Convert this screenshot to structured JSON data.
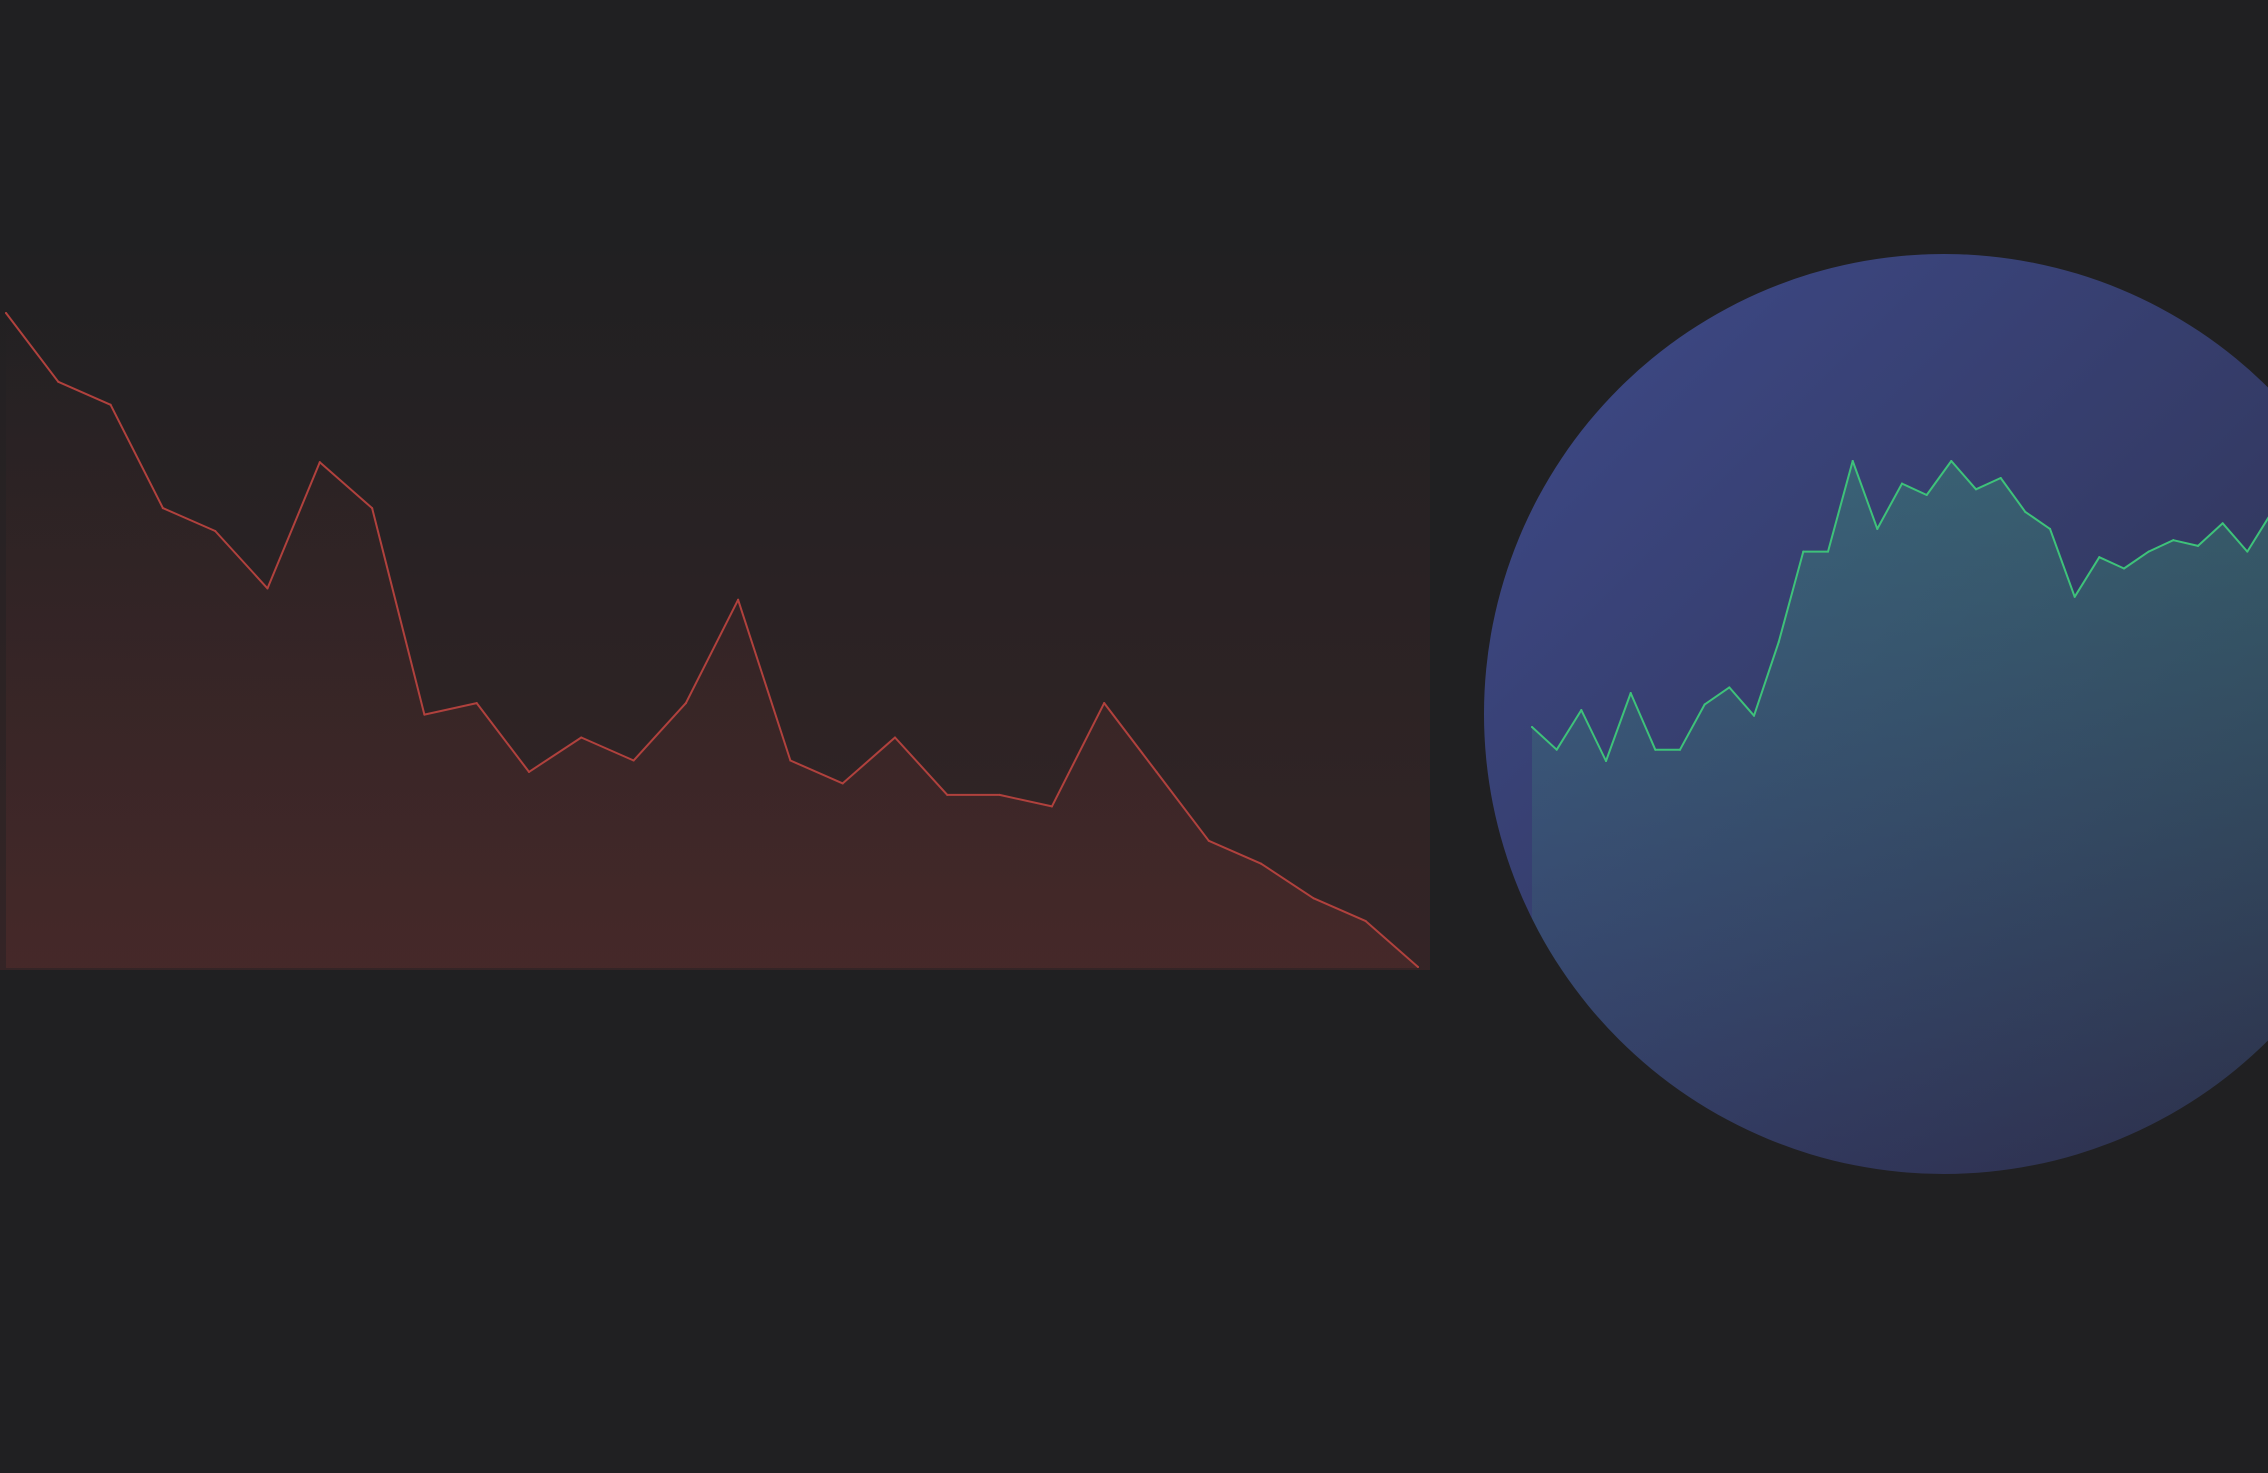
{
  "colors": {
    "background": "#202022",
    "down_line": "#b0413d",
    "up_line": "#3ec27a",
    "orb_light": "#3e4a8a",
    "orb_dark": "#2d2f4e"
  },
  "icons": {
    "orb": "gradient-circle-icon"
  },
  "chart_data": [
    {
      "type": "area",
      "trend": "down",
      "x": [
        0,
        1,
        2,
        3,
        4,
        5,
        6,
        7,
        8,
        9,
        10,
        11,
        12,
        13,
        14,
        15,
        16,
        17,
        18,
        19,
        20,
        21,
        22,
        23,
        24,
        25,
        26,
        27
      ],
      "values": [
        98,
        92,
        90,
        81,
        79,
        74,
        85,
        81,
        63,
        64,
        58,
        61,
        59,
        64,
        73,
        59,
        57,
        61,
        56,
        56,
        55,
        64,
        58,
        52,
        50,
        47,
        45,
        41
      ],
      "grid": false,
      "legend": "none"
    },
    {
      "type": "area",
      "trend": "up",
      "x": [
        0,
        1,
        2,
        3,
        4,
        5,
        6,
        7,
        8,
        9,
        10,
        11,
        12,
        13,
        14,
        15,
        16,
        17,
        18,
        19,
        20,
        21,
        22,
        23,
        24,
        25,
        26,
        27,
        28,
        29,
        30
      ],
      "values": [
        54,
        50,
        57,
        48,
        60,
        50,
        50,
        58,
        61,
        56,
        69,
        85,
        85,
        101,
        89,
        97,
        95,
        101,
        96,
        98,
        92,
        89,
        77,
        84,
        82,
        85,
        87,
        86,
        90,
        85,
        92
      ],
      "grid": false,
      "legend": "none"
    }
  ]
}
